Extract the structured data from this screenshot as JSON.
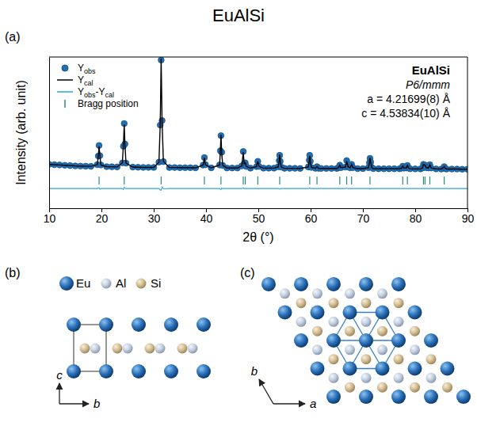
{
  "title": "EuAlSi",
  "chart_data": {
    "type": "line",
    "panel": "(a)",
    "x_label": "2θ (°)",
    "y_label": "Intensity (arb. unit)",
    "xlim": [
      10,
      90
    ],
    "xticks": [
      10,
      20,
      30,
      40,
      50,
      60,
      70,
      80,
      90
    ],
    "ylim": [
      0,
      100
    ],
    "yticks": [],
    "tick_labels": "x",
    "legend": "upper left",
    "x": [
      10,
      11,
      12,
      13,
      14,
      15,
      16,
      17,
      18,
      19.2,
      19.4,
      19.55,
      19.7,
      19.9,
      21,
      22,
      23,
      24.0,
      24.2,
      24.36,
      24.5,
      24.7,
      26,
      27,
      28,
      29,
      30,
      31.0,
      31.25,
      31.42,
      31.6,
      31.85,
      33,
      34,
      35,
      36,
      37,
      38,
      39.45,
      39.69,
      39.9,
      41,
      42.6,
      42.75,
      42.86,
      43.0,
      43.2,
      44,
      45,
      46,
      46.85,
      47.12,
      47.3,
      47.51,
      47.7,
      48.5,
      49.65,
      49.9,
      50.15,
      51,
      52,
      53,
      53.8,
      54.0,
      54.09,
      54.2,
      54.4,
      55,
      56,
      57,
      58,
      59.55,
      59.75,
      59.83,
      59.95,
      60.15,
      60.9,
      61.22,
      61.5,
      62,
      63,
      64,
      65,
      65.35,
      65.58,
      65.8,
      66.65,
      66.9,
      67.15,
      67.55,
      67.84,
      68.1,
      69,
      70,
      71.05,
      71.25,
      71.36,
      71.5,
      71.7,
      72,
      73,
      74,
      75,
      76,
      77,
      77.4,
      77.62,
      77.85,
      78.3,
      78.51,
      78.75,
      79,
      80,
      81,
      81.4,
      81.58,
      81.87,
      82.1,
      82.55,
      82.8,
      83.05,
      84,
      85,
      85.55,
      85.8,
      86,
      87,
      88,
      89,
      90
    ],
    "series": [
      {
        "name": "Yobs",
        "type": "scatter",
        "marker": "circle",
        "color": "#1f6fb4",
        "values": [
          29.0,
          28.8,
          28.6,
          28.4,
          28.2,
          28.0,
          27.9,
          27.8,
          27.7,
          28.8,
          34.5,
          41.5,
          34.8,
          28.6,
          27.5,
          27.4,
          27.3,
          30.0,
          41.0,
          56.0,
          42.5,
          29.8,
          27.2,
          27.1,
          27.0,
          27.0,
          27.0,
          30.5,
          55.0,
          98.0,
          58.0,
          30.8,
          26.9,
          26.9,
          26.8,
          26.8,
          26.8,
          26.7,
          28.5,
          33.5,
          28.8,
          26.7,
          28.6,
          38.0,
          48.0,
          37.0,
          28.3,
          26.6,
          26.6,
          26.6,
          28.0,
          37.5,
          29.5,
          30.0,
          27.6,
          26.5,
          27.5,
          31.0,
          27.6,
          26.5,
          26.5,
          26.5,
          27.4,
          31.5,
          35.0,
          31.0,
          27.2,
          26.4,
          26.4,
          26.4,
          26.3,
          27.3,
          31.8,
          35.0,
          31.0,
          27.0,
          26.4,
          27.5,
          26.4,
          26.3,
          26.3,
          26.3,
          26.3,
          26.8,
          28.5,
          26.8,
          27.2,
          31.5,
          27.5,
          26.7,
          29.0,
          26.8,
          26.2,
          26.2,
          26.8,
          30.0,
          33.0,
          30.5,
          26.9,
          26.2,
          26.1,
          26.1,
          26.1,
          26.1,
          26.1,
          26.5,
          27.8,
          26.5,
          26.6,
          28.3,
          26.6,
          26.1,
          26.0,
          26.0,
          26.6,
          29.0,
          28.5,
          26.8,
          26.6,
          28.8,
          26.6,
          26.0,
          25.9,
          27.5,
          26.2,
          25.9,
          25.9,
          25.9,
          25.8,
          25.8
        ]
      },
      {
        "name": "Ycal",
        "type": "line",
        "color": "#000000",
        "values": [
          29.0,
          28.8,
          28.6,
          28.4,
          28.2,
          28.0,
          27.9,
          27.8,
          27.7,
          28.8,
          34.0,
          41.0,
          35.2,
          28.6,
          27.5,
          27.4,
          27.3,
          30.0,
          41.6,
          55.2,
          42.0,
          29.8,
          27.2,
          27.1,
          27.0,
          27.0,
          27.0,
          30.5,
          56.0,
          99.0,
          57.0,
          31.0,
          26.9,
          26.9,
          26.8,
          26.8,
          26.8,
          26.7,
          28.5,
          33.5,
          28.8,
          26.7,
          28.6,
          38.5,
          48.6,
          36.6,
          28.3,
          26.6,
          26.6,
          26.6,
          28.0,
          37.0,
          29.5,
          30.0,
          27.6,
          26.5,
          27.5,
          31.0,
          27.6,
          26.5,
          26.5,
          26.5,
          27.4,
          31.8,
          35.4,
          31.0,
          27.2,
          26.4,
          26.4,
          26.4,
          26.3,
          27.3,
          31.5,
          34.6,
          31.0,
          27.0,
          26.4,
          27.5,
          26.4,
          26.3,
          26.3,
          26.3,
          26.3,
          26.8,
          28.5,
          26.8,
          27.2,
          31.2,
          27.5,
          26.7,
          29.0,
          26.8,
          26.2,
          26.2,
          26.8,
          30.0,
          33.3,
          30.5,
          26.9,
          26.2,
          26.1,
          26.1,
          26.1,
          26.1,
          26.1,
          26.5,
          27.8,
          26.5,
          26.6,
          28.3,
          26.6,
          26.1,
          26.0,
          26.0,
          26.6,
          29.0,
          28.5,
          26.8,
          26.6,
          28.8,
          26.6,
          26.0,
          25.9,
          27.5,
          26.2,
          25.9,
          25.9,
          25.9,
          25.8,
          25.8
        ]
      },
      {
        "name": "Yobs-Ycal",
        "type": "line",
        "color": "#2aa4e6",
        "values": [
          13.0,
          13.0,
          13.0,
          13.0,
          13.0,
          13.0,
          13.0,
          13.0,
          13.0,
          13.0,
          13.5,
          13.5,
          12.6,
          13.0,
          13.0,
          13.0,
          13.0,
          13.0,
          12.4,
          13.8,
          13.5,
          13.0,
          13.0,
          13.0,
          13.0,
          13.0,
          13.0,
          13.0,
          12.0,
          12.0,
          14.0,
          12.8,
          13.0,
          13.0,
          13.0,
          13.0,
          13.0,
          13.0,
          13.0,
          13.0,
          13.0,
          13.0,
          13.0,
          12.5,
          12.4,
          13.4,
          13.0,
          13.0,
          13.0,
          13.0,
          13.0,
          13.5,
          13.0,
          13.0,
          13.0,
          13.0,
          13.0,
          13.0,
          13.0,
          13.0,
          13.0,
          13.0,
          13.0,
          12.7,
          12.6,
          13.0,
          13.0,
          13.0,
          13.0,
          13.0,
          13.0,
          13.0,
          13.3,
          13.4,
          13.0,
          13.0,
          13.0,
          13.0,
          13.0,
          13.0,
          13.0,
          13.0,
          13.0,
          13.0,
          13.0,
          13.0,
          13.0,
          13.3,
          13.0,
          13.0,
          13.0,
          13.0,
          13.0,
          13.0,
          13.0,
          13.0,
          12.7,
          13.0,
          13.0,
          13.0,
          13.0,
          13.0,
          13.0,
          13.0,
          13.0,
          13.0,
          13.0,
          13.0,
          13.0,
          13.0,
          13.0,
          13.0,
          13.0,
          13.0,
          13.0,
          13.0,
          13.0,
          13.0,
          13.0,
          13.0,
          13.0,
          13.0,
          13.0,
          13.0,
          13.0,
          13.0,
          13.0,
          13.0,
          13.0,
          13.0
        ]
      }
    ],
    "bragg_positions": {
      "name": "Bragg position",
      "color": "#2a8c7e",
      "x": [
        19.55,
        24.36,
        31.42,
        39.69,
        42.86,
        47.12,
        47.51,
        49.9,
        54.09,
        59.83,
        61.22,
        65.58,
        66.9,
        67.84,
        71.36,
        77.62,
        78.51,
        81.58,
        81.87,
        82.8,
        85.55
      ]
    },
    "annotations": [
      "EuAlSi",
      "P6/mmm",
      "a = 4.21699(8) Å",
      "c = 4.53834(10) Å"
    ]
  },
  "diagrams": [
    {
      "panel": "(b)",
      "atoms": [
        "Eu",
        "Al",
        "Si"
      ],
      "axes": [
        "c",
        "b"
      ]
    },
    {
      "panel": "(c)",
      "axes": [
        "b",
        "a"
      ]
    }
  ]
}
